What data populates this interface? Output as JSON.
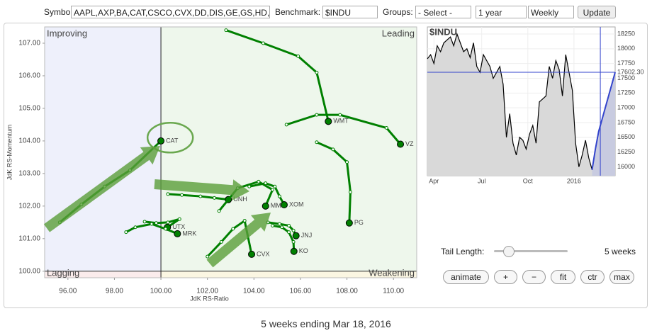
{
  "controls": {
    "symbols_label": "Symbols:",
    "symbols": "AAPL,AXP,BA,CAT,CSCO,CVX,DD,DIS,GE,GS,HD,I",
    "benchmark_label": "Benchmark:",
    "benchmark": "$INDU",
    "groups_label": "Groups:",
    "group": "- Select -",
    "period": "1 year",
    "interval": "Weekly",
    "update": "Update",
    "tail_length_label": "Tail Length:",
    "tail_length": "5 weeks",
    "buttons": [
      "animate",
      "+",
      "−",
      "fit",
      "ctr",
      "max"
    ]
  },
  "footer": "5 weeks ending Mar 18, 2016",
  "chart_data": [
    {
      "type": "scatter",
      "x_label": "JdK RS-Ratio",
      "y_label": "JdK RS-Momentum",
      "quadrants": [
        "Improving",
        "Leading",
        "Lagging",
        "Weakening"
      ],
      "xlim": [
        95.0,
        111.0
      ],
      "ylim": [
        99.8,
        107.5
      ],
      "xticks": [
        {
          "value": 96,
          "label": "96.00"
        },
        {
          "value": 98,
          "label": "98.00"
        },
        {
          "value": 100,
          "label": "100.00"
        },
        {
          "value": 102,
          "label": "102.00"
        },
        {
          "value": 104,
          "label": "104.00"
        },
        {
          "value": 106,
          "label": "106.00"
        },
        {
          "value": 108,
          "label": "108.00"
        },
        {
          "value": 110,
          "label": "110.00"
        }
      ],
      "yticks": [
        {
          "value": 100,
          "label": "100.00"
        },
        {
          "value": 101,
          "label": "101.00"
        },
        {
          "value": 102,
          "label": "102.00"
        },
        {
          "value": 103,
          "label": "103.00"
        },
        {
          "value": 104,
          "label": "104.00"
        },
        {
          "value": 105,
          "label": "105.00"
        },
        {
          "value": 106,
          "label": "106.00"
        },
        {
          "value": 107,
          "label": "107.00"
        }
      ],
      "series": [
        {
          "name": "CAT",
          "color": "#008000",
          "x": [
            95.65,
            96.58,
            97.58,
            98.67,
            100.0
          ],
          "y": [
            101.5,
            102.05,
            102.6,
            103.1,
            104.0
          ]
        },
        {
          "name": "WMT",
          "color": "#008000",
          "x": [
            102.8,
            104.4,
            105.9,
            106.7,
            107.2
          ],
          "y": [
            107.4,
            107.0,
            106.6,
            106.1,
            104.6
          ]
        },
        {
          "name": "VZ",
          "color": "#008000",
          "x": [
            105.4,
            106.7,
            107.7,
            109.7,
            110.3
          ],
          "y": [
            104.5,
            104.8,
            104.8,
            104.4,
            103.9
          ]
        },
        {
          "name": "PG",
          "color": "#008000",
          "x": [
            106.7,
            107.4,
            108.0,
            108.15,
            108.1
          ],
          "y": [
            103.96,
            103.74,
            103.35,
            102.43,
            101.48
          ]
        },
        {
          "name": "UNH",
          "color": "#008000",
          "x": [
            100.3,
            100.9,
            101.7,
            102.3,
            102.9
          ],
          "y": [
            102.37,
            102.34,
            102.3,
            102.25,
            102.2
          ]
        },
        {
          "name": "MMM",
          "color": "#008000",
          "x": [
            102.5,
            103.3,
            104.2,
            104.8,
            104.5
          ],
          "y": [
            101.85,
            102.55,
            102.75,
            102.5,
            102.0
          ]
        },
        {
          "name": "XOM",
          "color": "#008000",
          "x": [
            103.8,
            104.5,
            104.9,
            105.1,
            105.3
          ],
          "y": [
            102.6,
            102.7,
            102.6,
            102.3,
            102.04
          ]
        },
        {
          "name": "CVX",
          "color": "#008000",
          "x": [
            102.0,
            102.6,
            103.1,
            103.6,
            103.9
          ],
          "y": [
            100.45,
            100.9,
            101.3,
            101.55,
            100.52
          ]
        },
        {
          "name": "JNJ",
          "color": "#008000",
          "x": [
            104.6,
            105.1,
            105.5,
            105.7,
            105.81
          ],
          "y": [
            101.5,
            101.45,
            101.4,
            101.25,
            101.09
          ]
        },
        {
          "name": "KO",
          "color": "#008000",
          "x": [
            104.8,
            105.2,
            105.5,
            105.7,
            105.72
          ],
          "y": [
            101.4,
            101.35,
            101.2,
            100.9,
            100.61
          ]
        },
        {
          "name": "UTX",
          "color": "#008000",
          "x": [
            99.3,
            99.8,
            100.3,
            100.8,
            100.28
          ],
          "y": [
            101.52,
            101.48,
            101.5,
            101.6,
            101.35
          ]
        },
        {
          "name": "MRK",
          "color": "#008000",
          "x": [
            98.5,
            98.9,
            99.6,
            100.2,
            100.71
          ],
          "y": [
            101.2,
            101.35,
            101.45,
            101.3,
            101.15
          ]
        }
      ]
    },
    {
      "type": "line",
      "title": "$INDU",
      "xlim": [
        0,
        57
      ],
      "ylim": [
        15850,
        18370
      ],
      "grid": true,
      "xticks": [
        {
          "value": 2,
          "label": "Apr"
        },
        {
          "value": 16.5,
          "label": "Jul"
        },
        {
          "value": 30.5,
          "label": "Oct"
        },
        {
          "value": 44.5,
          "label": "2016"
        }
      ],
      "yticks": [
        16000,
        16250,
        16500,
        16750,
        17000,
        17250,
        17500,
        17750,
        18000,
        18250
      ],
      "current": {
        "value": 17602.3,
        "label": "17602.30"
      },
      "series": [
        {
          "color": "#000000",
          "values": [
            17830,
            17900,
            17750,
            18050,
            17950,
            18100,
            18150,
            18200,
            18050,
            18250,
            18100,
            17950,
            18000,
            17850,
            18100,
            17700,
            17600,
            17900,
            17800,
            17700,
            17500,
            17600,
            17700,
            17400,
            16500,
            16900,
            16400,
            16200,
            16500,
            16450,
            16300,
            16550,
            16700,
            16400,
            17100,
            17150,
            17200,
            17700,
            17500,
            17800,
            17650,
            17200,
            17900,
            17600,
            17300,
            16400,
            16000,
            16200,
            16450,
            16150,
            15950,
            null,
            null,
            null,
            null,
            null,
            null,
            null
          ]
        },
        {
          "color": "#3344cc",
          "values": [
            null,
            null,
            null,
            null,
            null,
            null,
            null,
            null,
            null,
            null,
            null,
            null,
            null,
            null,
            null,
            null,
            null,
            null,
            null,
            null,
            null,
            null,
            null,
            null,
            null,
            null,
            null,
            null,
            null,
            null,
            null,
            null,
            null,
            null,
            null,
            null,
            null,
            null,
            null,
            null,
            null,
            null,
            null,
            null,
            null,
            null,
            null,
            null,
            null,
            null,
            15950,
            16300,
            16600,
            16800,
            17000,
            17200,
            17400,
            17602.3
          ]
        }
      ]
    }
  ]
}
